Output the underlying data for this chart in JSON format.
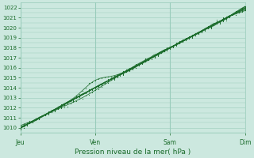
{
  "title": "Pression niveau de la mer( hPa )",
  "ylim": [
    1009.5,
    1022.5
  ],
  "yticks": [
    1010,
    1011,
    1012,
    1013,
    1014,
    1015,
    1016,
    1017,
    1018,
    1019,
    1020,
    1021,
    1022
  ],
  "xtick_labels": [
    "Jeu",
    "Ven",
    "Sam",
    "Dim"
  ],
  "xtick_positions": [
    0,
    96,
    192,
    288
  ],
  "total_points": 289,
  "bg_color": "#cce8df",
  "grid_color": "#99ccbb",
  "line_color": "#1a6b2a",
  "tick_label_color": "#1a6b2a",
  "ytick_fontsize": 5.0,
  "xtick_fontsize": 5.5,
  "xlabel_fontsize": 6.5
}
